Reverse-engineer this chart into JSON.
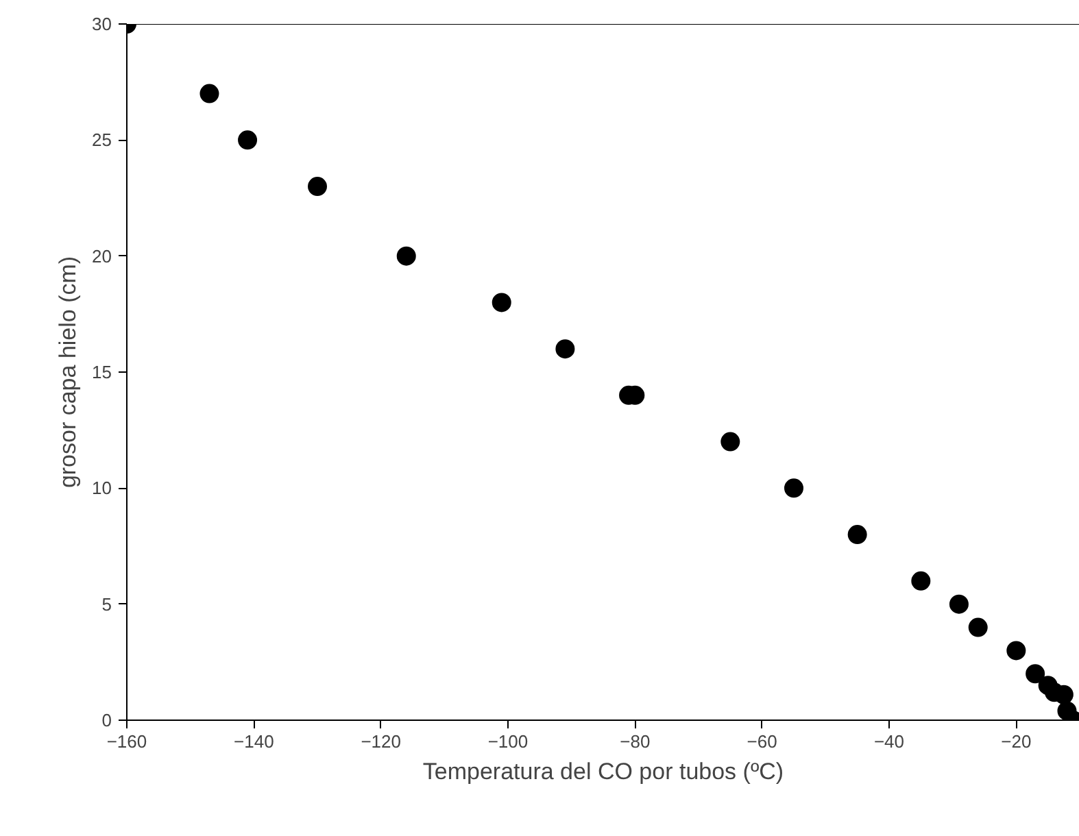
{
  "chart_data": {
    "type": "scatter",
    "xlabel": "Temperatura del CO por tubos (ºC)",
    "ylabel": "grosor capa hielo (cm)",
    "x": [
      -160,
      -147,
      -141,
      -130,
      -116,
      -101,
      -91,
      -81,
      -80,
      -65,
      -55,
      -45,
      -35,
      -29,
      -26,
      -20,
      -17,
      -15,
      -14,
      -12.5,
      -12,
      -11
    ],
    "series": [
      {
        "color": "#000000",
        "values": [
          30,
          27,
          25,
          23,
          20,
          18,
          16,
          14,
          14,
          12,
          10,
          8,
          6,
          5,
          4,
          3,
          2,
          1.5,
          1.2,
          1.1,
          0.4,
          0
        ]
      }
    ],
    "xlim": [
      -160,
      -10
    ],
    "ylim": [
      0,
      30
    ],
    "xticks": [
      -160,
      -140,
      -120,
      -100,
      -80,
      -60,
      -40,
      -20
    ],
    "yticks": [
      0,
      5,
      10,
      15,
      20,
      25,
      30
    ],
    "grid": false,
    "marker": "circle"
  }
}
